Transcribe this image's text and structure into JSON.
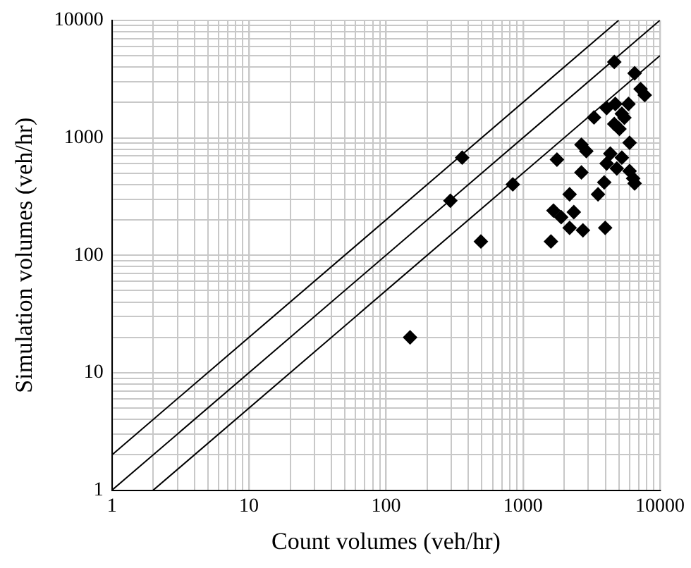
{
  "chart_data": {
    "type": "scatter",
    "xlabel": "Count volumes (veh/hr)",
    "ylabel": "Simulation volumes (veh/hr)",
    "log": "xy",
    "xlim": [
      1,
      10000
    ],
    "ylim": [
      1,
      10000
    ],
    "xticks": [
      1,
      10,
      100,
      1000,
      10000
    ],
    "yticks": [
      1,
      10,
      100,
      1000,
      10000
    ],
    "grid": true,
    "legend": false,
    "series": [
      {
        "color": "#000000",
        "marker": "diamond",
        "x": [
          150,
          295,
          360,
          843,
          493,
          4640,
          6530,
          7220,
          7740,
          3300,
          4080,
          4720,
          5890,
          5270,
          4640,
          5060,
          5500,
          6000,
          2670,
          2900,
          1770,
          4340,
          5270,
          4080,
          4840,
          6000,
          6530,
          6370,
          2670,
          3920,
          2190,
          3530,
          1670,
          1900,
          2350,
          2190,
          2740,
          3980,
          1600
        ],
        "values": [
          20,
          291,
          678,
          401,
          131,
          4420,
          3540,
          2600,
          2310,
          1490,
          1790,
          1940,
          1940,
          1600,
          1310,
          1190,
          1480,
          907,
          873,
          770,
          652,
          733,
          678,
          604,
          548,
          521,
          409,
          451,
          507,
          417,
          330,
          330,
          240,
          211,
          233,
          171,
          163,
          171,
          131
        ]
      },
      {
        "type": "line",
        "color": "#000000",
        "marker": "none",
        "line_style": "solid",
        "x": [
          1,
          5000
        ],
        "values": [
          2,
          10000
        ]
      },
      {
        "type": "line",
        "color": "#000000",
        "marker": "none",
        "line_style": "solid",
        "x": [
          1,
          10000
        ],
        "values": [
          1,
          10000
        ]
      },
      {
        "type": "line",
        "color": "#000000",
        "marker": "none",
        "line_style": "solid",
        "x": [
          2,
          10000
        ],
        "values": [
          1,
          5000
        ]
      }
    ]
  }
}
